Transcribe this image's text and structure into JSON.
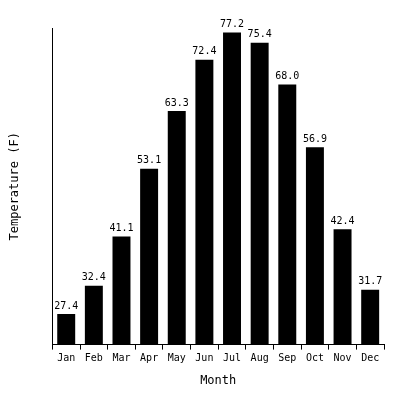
{
  "chart_data": {
    "type": "bar",
    "x_label": "Month",
    "y_label": "Temperature (F)",
    "categories": [
      "Jan",
      "Feb",
      "Mar",
      "Apr",
      "May",
      "Jun",
      "Jul",
      "Aug",
      "Sep",
      "Oct",
      "Nov",
      "Dec"
    ],
    "values": [
      27.4,
      32.4,
      41.1,
      53.1,
      63.3,
      72.4,
      77.2,
      75.4,
      68.0,
      56.9,
      42.4,
      31.7
    ],
    "value_labels": [
      "27.4",
      "32.4",
      "41.1",
      "53.1",
      "63.3",
      "72.4",
      "77.2",
      "75.4",
      "68.0",
      "56.9",
      "42.4",
      "31.7"
    ],
    "color": "#000000",
    "ylim": [
      22,
      78
    ],
    "grid": false,
    "data_labels": true,
    "tick_labels": "x"
  }
}
